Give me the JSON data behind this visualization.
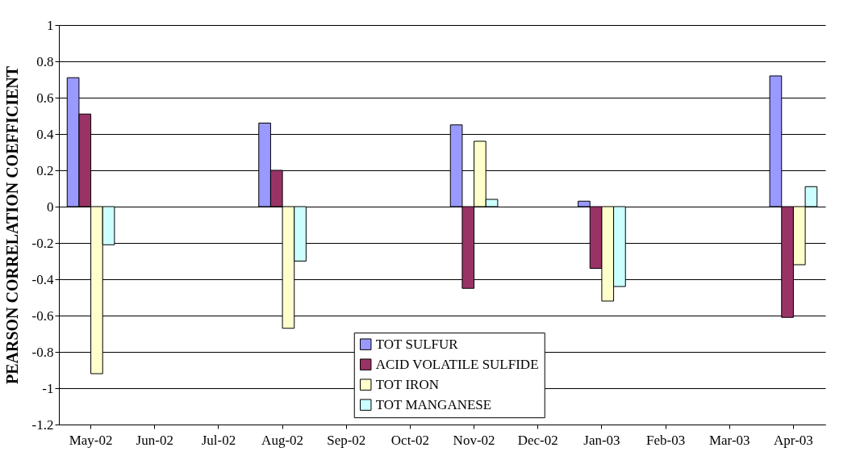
{
  "chart_data": {
    "type": "bar",
    "ylabel": "PEARSON CORRELATION COEFFICIENT",
    "categories": [
      "May-02",
      "Jun-02",
      "Jul-02",
      "Aug-02",
      "Sep-02",
      "Oct-02",
      "Nov-02",
      "Dec-02",
      "Jan-03",
      "Feb-03",
      "Mar-03",
      "Apr-03"
    ],
    "series": [
      {
        "name": "TOT SULFUR",
        "color": "#9999ff",
        "values": [
          0.71,
          null,
          null,
          0.46,
          null,
          null,
          0.45,
          null,
          0.03,
          null,
          null,
          0.72
        ]
      },
      {
        "name": "ACID VOLATILE SULFIDE",
        "color": "#993366",
        "values": [
          0.51,
          null,
          null,
          0.2,
          null,
          null,
          -0.45,
          null,
          -0.34,
          null,
          null,
          -0.61
        ]
      },
      {
        "name": "TOT IRON",
        "color": "#ffffcc",
        "values": [
          -0.92,
          null,
          null,
          -0.67,
          null,
          null,
          0.36,
          null,
          -0.52,
          null,
          null,
          -0.32
        ]
      },
      {
        "name": "TOT MANGANESE",
        "color": "#ccffff",
        "values": [
          -0.21,
          null,
          null,
          -0.3,
          null,
          null,
          0.04,
          null,
          -0.44,
          null,
          null,
          0.11
        ]
      }
    ],
    "ylim": [
      -1.2,
      1
    ],
    "yticks": [
      -1.2,
      -1,
      -0.8,
      -0.6,
      -0.4,
      -0.2,
      0,
      0.2,
      0.4,
      0.6,
      0.8,
      1
    ],
    "grid": "y",
    "legend": "bottom"
  }
}
